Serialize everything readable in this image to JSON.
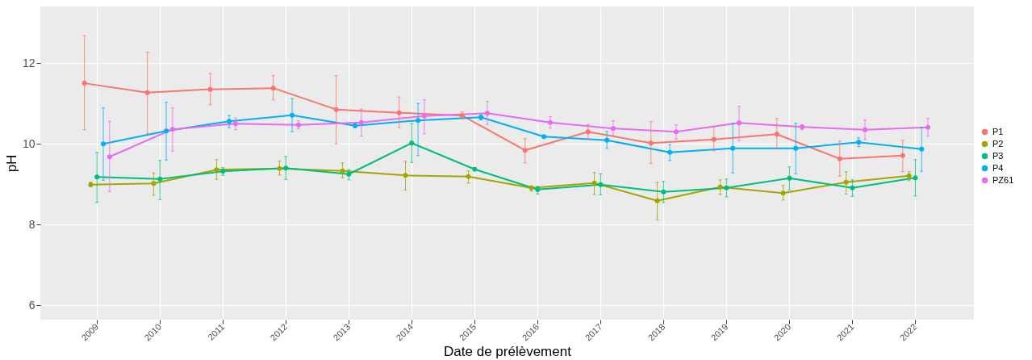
{
  "chart_data": {
    "type": "line",
    "xlabel": "Date de prélèvement",
    "ylabel": "pH",
    "xlim": [
      2008.1,
      2022.93
    ],
    "ylim": [
      5.65,
      13.4
    ],
    "xticks": [
      2009,
      2010,
      2011,
      2012,
      2013,
      2014,
      2015,
      2016,
      2017,
      2018,
      2019,
      2020,
      2021,
      2022
    ],
    "yticks": [
      6,
      8,
      10,
      12
    ],
    "grid": true,
    "legend": "right",
    "marker": "circle",
    "line_style": "solid",
    "series": [
      {
        "name": "P1",
        "color": "#f8766d",
        "x": [
          2008.8,
          2009.8,
          2010.8,
          2011.8,
          2012.8,
          2013.8,
          2014.8,
          2015.8,
          2016.8,
          2017.8,
          2018.8,
          2019.8,
          2020.8,
          2021.8
        ],
        "values": [
          11.5,
          11.27,
          11.35,
          11.38,
          10.85,
          10.77,
          10.7,
          9.84,
          10.3,
          10.02,
          10.11,
          10.24,
          9.63,
          9.71
        ],
        "errors": [
          [
            10.35,
            12.68
          ],
          [
            10.26,
            12.27
          ],
          [
            10.97,
            11.74
          ],
          [
            11.09,
            11.69
          ],
          [
            10.0,
            11.69
          ],
          [
            10.4,
            11.16
          ],
          [
            10.62,
            10.79
          ],
          [
            9.53,
            10.13
          ],
          [
            10.12,
            10.48
          ],
          [
            9.51,
            10.55
          ],
          [
            9.83,
            10.42
          ],
          [
            9.87,
            10.63
          ],
          [
            9.2,
            10.07
          ],
          [
            9.31,
            10.09
          ]
        ]
      },
      {
        "name": "P2",
        "color": "#a3a500",
        "x": [
          2008.9,
          2009.9,
          2010.9,
          2011.9,
          2012.9,
          2013.9,
          2014.9,
          2015.9,
          2016.9,
          2017.9,
          2018.9,
          2019.9,
          2020.9,
          2021.9
        ],
        "values": [
          8.99,
          9.02,
          9.36,
          9.39,
          9.33,
          9.22,
          9.19,
          8.91,
          9.03,
          8.59,
          8.93,
          8.78,
          9.05,
          9.21
        ],
        "errors": [
          [
            8.94,
            9.05
          ],
          [
            8.73,
            9.28
          ],
          [
            9.12,
            9.61
          ],
          [
            9.23,
            9.57
          ],
          [
            9.16,
            9.53
          ],
          [
            8.86,
            9.57
          ],
          [
            9.03,
            9.33
          ],
          [
            8.83,
            8.96
          ],
          [
            8.75,
            9.29
          ],
          [
            8.12,
            9.05
          ],
          [
            8.75,
            9.11
          ],
          [
            8.61,
            8.97
          ],
          [
            8.76,
            9.31
          ],
          [
            9.09,
            9.31
          ]
        ]
      },
      {
        "name": "P3",
        "color": "#00bf7d",
        "x": [
          2009,
          2010,
          2011,
          2012,
          2013,
          2014,
          2015,
          2016,
          2017,
          2018,
          2019,
          2020,
          2021,
          2022
        ],
        "values": [
          9.18,
          9.13,
          9.32,
          9.4,
          9.25,
          10.02,
          9.37,
          8.87,
          8.99,
          8.81,
          8.91,
          9.15,
          8.91,
          9.16
        ],
        "errors": [
          [
            8.55,
            9.79
          ],
          [
            8.62,
            9.59
          ],
          [
            9.22,
            9.41
          ],
          [
            9.12,
            9.69
          ],
          [
            9.11,
            9.36
          ],
          [
            9.54,
            10.5
          ],
          null,
          [
            8.76,
            8.95
          ],
          [
            8.74,
            9.26
          ],
          [
            8.55,
            9.07
          ],
          [
            8.69,
            9.13
          ],
          [
            8.86,
            9.43
          ],
          [
            8.7,
            9.11
          ],
          [
            8.71,
            9.61
          ]
        ]
      },
      {
        "name": "P4",
        "color": "#00b0f6",
        "x": [
          2009.1,
          2010.1,
          2011.1,
          2012.1,
          2013.1,
          2014.1,
          2015.1,
          2016.1,
          2017.1,
          2018.1,
          2019.1,
          2020.1,
          2021.1,
          2022.1
        ],
        "values": [
          10.0,
          10.32,
          10.56,
          10.71,
          10.45,
          10.58,
          10.66,
          10.18,
          10.09,
          9.79,
          9.89,
          9.89,
          10.04,
          9.87
        ],
        "errors": [
          [
            9.1,
            10.89
          ],
          [
            9.6,
            11.03
          ],
          [
            10.4,
            10.7
          ],
          [
            10.3,
            11.12
          ],
          [
            10.4,
            10.5
          ],
          [
            9.71,
            11.0
          ],
          [
            10.59,
            10.72
          ],
          null,
          [
            9.89,
            10.31
          ],
          [
            9.59,
            9.98
          ],
          [
            9.28,
            10.51
          ],
          [
            9.26,
            10.51
          ],
          [
            9.93,
            10.15
          ],
          [
            9.32,
            10.4
          ]
        ]
      },
      {
        "name": "PZ61",
        "color": "#e76bf3",
        "x": [
          2009.2,
          2010.2,
          2011.2,
          2012.2,
          2013.2,
          2014.2,
          2015.2,
          2016.2,
          2017.2,
          2018.2,
          2019.2,
          2020.2,
          2021.2,
          2022.2
        ],
        "values": [
          9.68,
          10.36,
          10.5,
          10.47,
          10.53,
          10.69,
          10.76,
          10.53,
          10.38,
          10.3,
          10.52,
          10.42,
          10.35,
          10.41
        ],
        "errors": [
          [
            8.82,
            10.56
          ],
          [
            9.82,
            10.89
          ],
          [
            10.35,
            10.64
          ],
          [
            10.37,
            10.57
          ],
          [
            10.19,
            10.86
          ],
          [
            10.25,
            11.09
          ],
          [
            10.48,
            11.05
          ],
          [
            10.39,
            10.67
          ],
          [
            10.2,
            10.57
          ],
          [
            10.12,
            10.47
          ],
          [
            10.08,
            10.93
          ],
          [
            10.35,
            10.47
          ],
          [
            10.11,
            10.59
          ],
          [
            10.19,
            10.63
          ]
        ]
      }
    ]
  }
}
